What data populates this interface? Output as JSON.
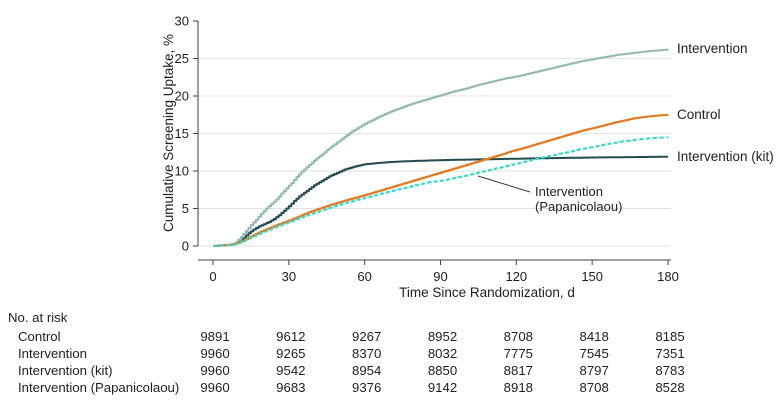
{
  "chart_data": {
    "type": "line",
    "title": "",
    "xlabel": "Time Since Randomization, d",
    "ylabel": "Cumulative Screening Uptake, %",
    "xlim": [
      0,
      180
    ],
    "ylim": [
      0,
      30
    ],
    "xticks": [
      0,
      30,
      60,
      90,
      120,
      150,
      180
    ],
    "yticks": [
      0,
      5,
      10,
      15,
      20,
      25,
      30
    ],
    "grid": "horizontal gridlines at 0,5,10,15,20,25; none at 30; offset JAMA-style axes",
    "legend_position": "end-of-line labels at right",
    "end_labels": [
      "Intervention",
      "Control",
      "Intervention (kit)"
    ],
    "annotation": [
      "Intervention",
      "(Papanicolaou)"
    ],
    "series": [
      {
        "name": "Intervention (kit)",
        "color": "#224b50",
        "line_style": "solid",
        "points": [
          [
            0,
            0
          ],
          [
            8,
            0.2
          ],
          [
            10,
            0.6
          ],
          [
            12,
            1.1
          ],
          [
            14,
            1.7
          ],
          [
            16,
            2.2
          ],
          [
            18,
            2.6
          ],
          [
            20,
            2.9
          ],
          [
            22,
            3.2
          ],
          [
            24,
            3.6
          ],
          [
            26,
            4.1
          ],
          [
            28,
            4.7
          ],
          [
            30,
            5.3
          ],
          [
            32,
            6.0
          ],
          [
            34,
            6.6
          ],
          [
            36,
            7.1
          ],
          [
            38,
            7.6
          ],
          [
            40,
            8.1
          ],
          [
            42,
            8.5
          ],
          [
            44,
            8.9
          ],
          [
            46,
            9.3
          ],
          [
            48,
            9.6
          ],
          [
            50,
            9.9
          ],
          [
            52,
            10.2
          ],
          [
            54,
            10.4
          ],
          [
            56,
            10.6
          ],
          [
            58,
            10.75
          ],
          [
            60,
            10.9
          ],
          [
            63,
            11.0
          ],
          [
            66,
            11.1
          ],
          [
            70,
            11.2
          ],
          [
            75,
            11.28
          ],
          [
            80,
            11.35
          ],
          [
            90,
            11.45
          ],
          [
            100,
            11.52
          ],
          [
            110,
            11.58
          ],
          [
            120,
            11.64
          ],
          [
            130,
            11.7
          ],
          [
            140,
            11.75
          ],
          [
            150,
            11.8
          ],
          [
            160,
            11.84
          ],
          [
            170,
            11.87
          ],
          [
            180,
            11.9
          ]
        ]
      },
      {
        "name": "Intervention",
        "color": "#93bab1",
        "line_style": "solid",
        "points": [
          [
            0,
            0
          ],
          [
            7,
            0.1
          ],
          [
            9,
            0.5
          ],
          [
            11,
            1.2
          ],
          [
            13,
            2.0
          ],
          [
            15,
            2.8
          ],
          [
            17,
            3.5
          ],
          [
            19,
            4.3
          ],
          [
            21,
            5.0
          ],
          [
            23,
            5.6
          ],
          [
            25,
            6.2
          ],
          [
            27,
            7.0
          ],
          [
            29,
            7.7
          ],
          [
            31,
            8.4
          ],
          [
            33,
            9.2
          ],
          [
            35,
            9.9
          ],
          [
            37,
            10.5
          ],
          [
            39,
            11.1
          ],
          [
            41,
            11.7
          ],
          [
            43,
            12.2
          ],
          [
            45,
            12.8
          ],
          [
            47,
            13.3
          ],
          [
            49,
            13.8
          ],
          [
            51,
            14.3
          ],
          [
            53,
            14.8
          ],
          [
            55,
            15.3
          ],
          [
            57,
            15.7
          ],
          [
            60,
            16.3
          ],
          [
            63,
            16.8
          ],
          [
            66,
            17.3
          ],
          [
            70,
            17.9
          ],
          [
            74,
            18.4
          ],
          [
            78,
            18.9
          ],
          [
            82,
            19.3
          ],
          [
            86,
            19.7
          ],
          [
            90,
            20.1
          ],
          [
            95,
            20.6
          ],
          [
            100,
            21.0
          ],
          [
            105,
            21.5
          ],
          [
            110,
            21.9
          ],
          [
            115,
            22.3
          ],
          [
            120,
            22.6
          ],
          [
            125,
            23.0
          ],
          [
            130,
            23.4
          ],
          [
            135,
            23.8
          ],
          [
            140,
            24.2
          ],
          [
            145,
            24.6
          ],
          [
            150,
            24.9
          ],
          [
            155,
            25.2
          ],
          [
            160,
            25.5
          ],
          [
            165,
            25.7
          ],
          [
            170,
            25.9
          ],
          [
            175,
            26.05
          ],
          [
            180,
            26.2
          ]
        ]
      },
      {
        "name": "Control",
        "color": "#e0791f",
        "line_style": "solid",
        "points": [
          [
            0,
            0
          ],
          [
            2,
            0.05
          ],
          [
            4,
            0.1
          ],
          [
            8,
            0.25
          ],
          [
            10,
            0.45
          ],
          [
            12,
            0.75
          ],
          [
            14,
            1.1
          ],
          [
            16,
            1.45
          ],
          [
            18,
            1.8
          ],
          [
            20,
            2.1
          ],
          [
            23,
            2.5
          ],
          [
            26,
            2.9
          ],
          [
            30,
            3.4
          ],
          [
            34,
            3.95
          ],
          [
            38,
            4.5
          ],
          [
            42,
            5.0
          ],
          [
            46,
            5.45
          ],
          [
            50,
            5.85
          ],
          [
            54,
            6.25
          ],
          [
            58,
            6.6
          ],
          [
            62,
            7.0
          ],
          [
            66,
            7.4
          ],
          [
            70,
            7.8
          ],
          [
            74,
            8.2
          ],
          [
            78,
            8.6
          ],
          [
            82,
            9.0
          ],
          [
            86,
            9.4
          ],
          [
            90,
            9.8
          ],
          [
            94,
            10.2
          ],
          [
            98,
            10.6
          ],
          [
            102,
            11.0
          ],
          [
            106,
            11.4
          ],
          [
            110,
            11.8
          ],
          [
            114,
            12.2
          ],
          [
            118,
            12.65
          ],
          [
            122,
            13.0
          ],
          [
            126,
            13.4
          ],
          [
            130,
            13.8
          ],
          [
            134,
            14.2
          ],
          [
            138,
            14.6
          ],
          [
            142,
            15.0
          ],
          [
            146,
            15.4
          ],
          [
            150,
            15.7
          ],
          [
            154,
            16.05
          ],
          [
            158,
            16.4
          ],
          [
            162,
            16.7
          ],
          [
            166,
            17.0
          ],
          [
            170,
            17.2
          ],
          [
            174,
            17.35
          ],
          [
            178,
            17.45
          ],
          [
            180,
            17.5
          ]
        ]
      },
      {
        "name": "Intervention (Papanicolaou)",
        "color": "#36d8cb",
        "line_style": "dashed",
        "points": [
          [
            0,
            0
          ],
          [
            8,
            0.2
          ],
          [
            10,
            0.4
          ],
          [
            12,
            0.7
          ],
          [
            14,
            1.0
          ],
          [
            16,
            1.3
          ],
          [
            18,
            1.6
          ],
          [
            20,
            1.9
          ],
          [
            23,
            2.3
          ],
          [
            26,
            2.7
          ],
          [
            30,
            3.2
          ],
          [
            34,
            3.7
          ],
          [
            38,
            4.2
          ],
          [
            42,
            4.65
          ],
          [
            46,
            5.1
          ],
          [
            50,
            5.5
          ],
          [
            54,
            5.9
          ],
          [
            58,
            6.25
          ],
          [
            62,
            6.6
          ],
          [
            66,
            6.95
          ],
          [
            70,
            7.3
          ],
          [
            75,
            7.7
          ],
          [
            80,
            8.1
          ],
          [
            85,
            8.5
          ],
          [
            90,
            8.7
          ],
          [
            95,
            9.05
          ],
          [
            100,
            9.4
          ],
          [
            105,
            9.8
          ],
          [
            110,
            10.2
          ],
          [
            115,
            10.6
          ],
          [
            120,
            11.0
          ],
          [
            125,
            11.4
          ],
          [
            130,
            11.8
          ],
          [
            135,
            12.15
          ],
          [
            140,
            12.5
          ],
          [
            145,
            12.9
          ],
          [
            150,
            13.2
          ],
          [
            155,
            13.55
          ],
          [
            160,
            13.85
          ],
          [
            165,
            14.1
          ],
          [
            170,
            14.3
          ],
          [
            175,
            14.42
          ],
          [
            180,
            14.5
          ]
        ]
      }
    ]
  },
  "risk_table": {
    "header": "No. at risk",
    "days": [
      0,
      30,
      60,
      90,
      120,
      150,
      180
    ],
    "rows": [
      {
        "label": "Control",
        "values": [
          9891,
          9612,
          9267,
          8952,
          8708,
          8418,
          8185
        ]
      },
      {
        "label": "Intervention",
        "values": [
          9960,
          9265,
          8370,
          8032,
          7775,
          7545,
          7351
        ]
      },
      {
        "label": "Intervention (kit)",
        "values": [
          9960,
          9542,
          8954,
          8850,
          8817,
          8797,
          8783
        ]
      },
      {
        "label": "Intervention (Papanicolaou)",
        "values": [
          9960,
          9683,
          9376,
          9142,
          8918,
          8708,
          8528
        ]
      }
    ]
  },
  "colors": {
    "intervention": "#93bab1",
    "control": "#e0791f",
    "intervention_kit": "#224b50",
    "intervention_papanicolaou": "#36d8cb",
    "gridline": "#e2e2e2",
    "axis": "#404040",
    "text": "#1f1f1f"
  }
}
